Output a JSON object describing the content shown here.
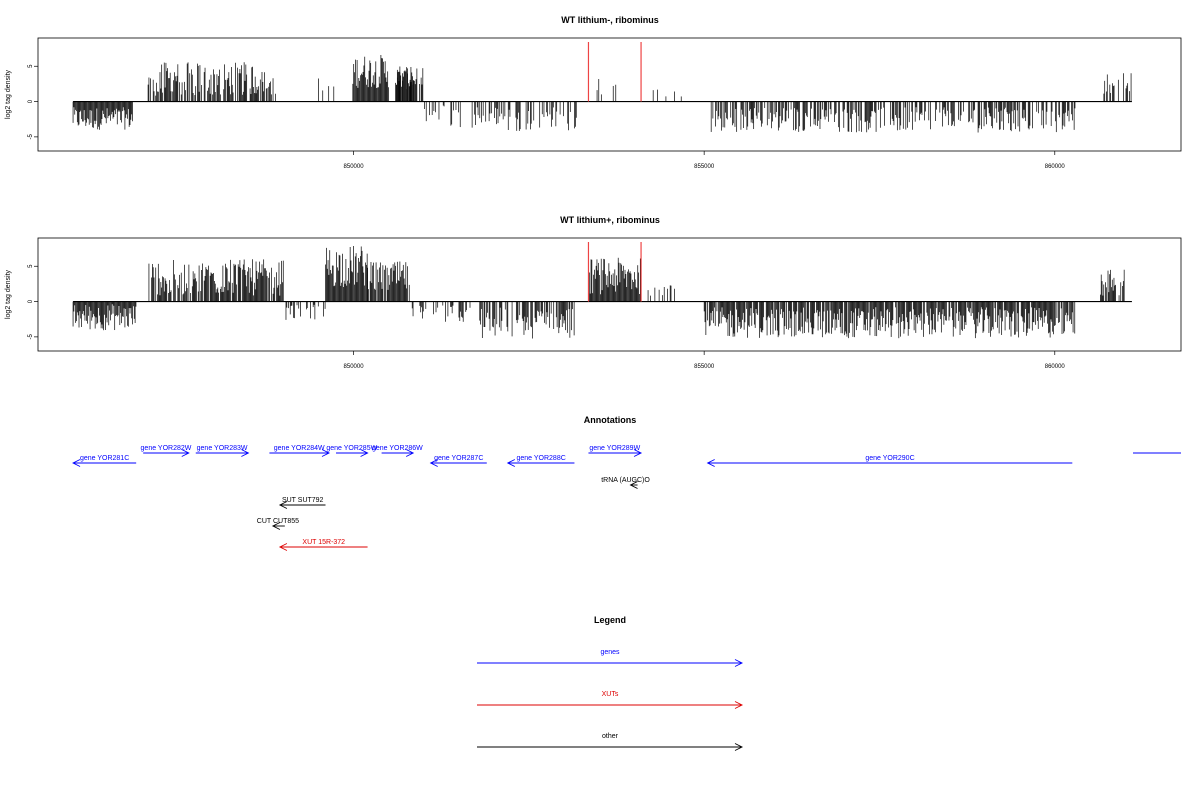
{
  "colors": {
    "gene": "#0000ff",
    "xut": "#dd0000",
    "other": "#000000",
    "marker": "#ee4444",
    "bars": "#000000"
  },
  "chart_data": [
    {
      "type": "bar",
      "title": "WT lithium-, ribominus",
      "ylabel": "log2 tag density",
      "xlim": [
        845500,
        861800
      ],
      "ylim": [
        -7,
        9
      ],
      "xticks": [
        850000,
        855000,
        860000
      ],
      "yticks": [
        5,
        0,
        -5
      ],
      "markers": [
        853350,
        854100
      ],
      "grid": false,
      "segments": [
        {
          "start": 846000,
          "end": 846850,
          "mean": -2.4,
          "amp": 1.6,
          "density": 1.0
        },
        {
          "start": 847070,
          "end": 848900,
          "mean": 3.2,
          "amp": 2.4,
          "density": 0.75
        },
        {
          "start": 849500,
          "end": 849900,
          "mean": 2.0,
          "amp": 1.5,
          "density": 0.3
        },
        {
          "start": 849990,
          "end": 850500,
          "mean": 4.3,
          "amp": 2.4,
          "density": 1.0
        },
        {
          "start": 850600,
          "end": 850900,
          "mean": 3.2,
          "amp": 1.5,
          "density": 0.9
        },
        {
          "start": 850600,
          "end": 851000,
          "mean": 3.5,
          "amp": 1.5,
          "density": 0.7
        },
        {
          "start": 851000,
          "end": 852000,
          "mean": -2.0,
          "amp": 1.7,
          "density": 0.35
        },
        {
          "start": 852000,
          "end": 853200,
          "mean": -2.4,
          "amp": 1.8,
          "density": 0.35
        },
        {
          "start": 853400,
          "end": 853900,
          "mean": 2.2,
          "amp": 1.3,
          "density": 0.12
        },
        {
          "start": 854200,
          "end": 854700,
          "mean": 1.2,
          "amp": 0.8,
          "density": 0.08
        },
        {
          "start": 855100,
          "end": 860300,
          "mean": -2.6,
          "amp": 1.8,
          "density": 0.6
        },
        {
          "start": 860700,
          "end": 861100,
          "mean": 2.6,
          "amp": 1.5,
          "density": 0.5
        }
      ]
    },
    {
      "type": "bar",
      "title": "WT lithium+, ribominus",
      "ylabel": "log2 tag density",
      "xlim": [
        845500,
        861800
      ],
      "ylim": [
        -7,
        9
      ],
      "xticks": [
        850000,
        855000,
        860000
      ],
      "yticks": [
        5,
        0,
        -5
      ],
      "markers": [
        853350,
        854100
      ],
      "grid": false,
      "segments": [
        {
          "start": 846000,
          "end": 846900,
          "mean": -2.2,
          "amp": 1.9,
          "density": 1.0
        },
        {
          "start": 847070,
          "end": 849000,
          "mean": 3.4,
          "amp": 2.6,
          "density": 0.8
        },
        {
          "start": 849000,
          "end": 849600,
          "mean": -1.4,
          "amp": 1.2,
          "density": 0.4
        },
        {
          "start": 849600,
          "end": 850200,
          "mean": 5.0,
          "amp": 3.0,
          "density": 1.0
        },
        {
          "start": 850200,
          "end": 850800,
          "mean": 3.5,
          "amp": 2.2,
          "density": 0.9
        },
        {
          "start": 850800,
          "end": 851700,
          "mean": -1.8,
          "amp": 1.3,
          "density": 0.35
        },
        {
          "start": 851800,
          "end": 853200,
          "mean": -3.0,
          "amp": 2.3,
          "density": 0.7
        },
        {
          "start": 853350,
          "end": 854100,
          "mean": 3.6,
          "amp": 2.6,
          "density": 1.0
        },
        {
          "start": 854200,
          "end": 854600,
          "mean": 1.8,
          "amp": 1.0,
          "density": 0.2
        },
        {
          "start": 855000,
          "end": 860300,
          "mean": -3.0,
          "amp": 2.2,
          "density": 0.9
        },
        {
          "start": 860650,
          "end": 861000,
          "mean": 2.6,
          "amp": 2.0,
          "density": 0.8
        }
      ]
    }
  ],
  "annotations": {
    "title": "Annotations",
    "features": [
      {
        "label": "gene YOR281C",
        "type": "gene",
        "start": 846000,
        "end": 846900,
        "strand": "-",
        "row": 1
      },
      {
        "label": "gene YOR282W",
        "type": "gene",
        "start": 847000,
        "end": 847650,
        "strand": "+",
        "row": 0
      },
      {
        "label": "gene YOR283W",
        "type": "gene",
        "start": 847750,
        "end": 848500,
        "strand": "+",
        "row": 0
      },
      {
        "label": "gene YOR284W",
        "type": "gene",
        "start": 848800,
        "end": 849650,
        "strand": "+",
        "row": 0
      },
      {
        "label": "gene YOR285W",
        "type": "gene",
        "start": 849750,
        "end": 850200,
        "strand": "+",
        "row": 0
      },
      {
        "label": "gene YOR286W",
        "type": "gene",
        "start": 850400,
        "end": 850850,
        "strand": "+",
        "row": 0
      },
      {
        "label": "gene YOR287C",
        "type": "gene",
        "start": 851100,
        "end": 851900,
        "strand": "-",
        "row": 1
      },
      {
        "label": "gene YOR288C",
        "type": "gene",
        "start": 852200,
        "end": 853150,
        "strand": "-",
        "row": 1
      },
      {
        "label": "gene YOR289W",
        "type": "gene",
        "start": 853350,
        "end": 854100,
        "strand": "+",
        "row": 0
      },
      {
        "label": "gene YOR290C",
        "type": "gene",
        "start": 855050,
        "end": 860250,
        "strand": "-",
        "row": 1
      },
      {
        "label": "tRNA (AUGC)O",
        "type": "other",
        "start": 853950,
        "end": 854050,
        "strand": "-",
        "row": 2
      },
      {
        "label": "SUT SUT792",
        "type": "other",
        "start": 848950,
        "end": 849600,
        "strand": "-",
        "row": 3
      },
      {
        "label": "CUT CUT855",
        "type": "other",
        "start": 848850,
        "end": 849020,
        "strand": "-",
        "row": 4
      },
      {
        "label": "XUT 15R-372",
        "type": "xut",
        "start": 848950,
        "end": 850200,
        "strand": "-",
        "row": 5
      }
    ]
  },
  "legend": {
    "title": "Legend",
    "items": [
      {
        "label": "genes",
        "type": "gene"
      },
      {
        "label": "XUTs",
        "type": "xut"
      },
      {
        "label": "other",
        "type": "other"
      }
    ]
  }
}
